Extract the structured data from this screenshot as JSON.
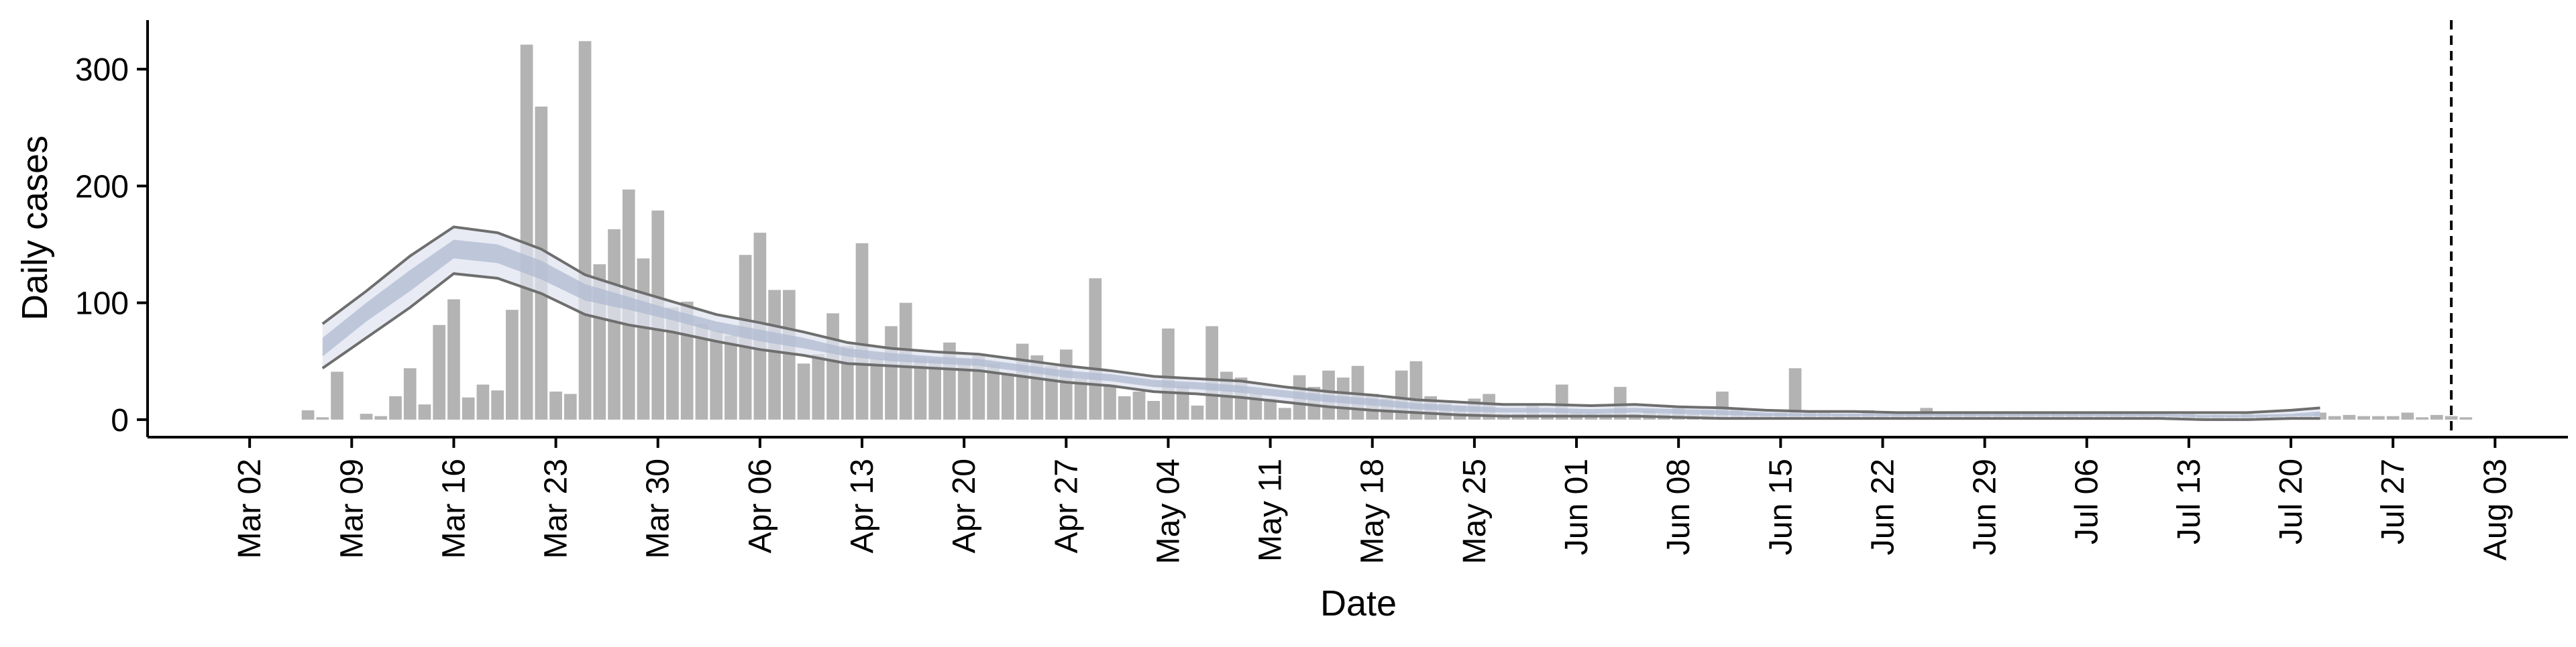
{
  "chart_data": {
    "type": "bar",
    "title": "",
    "xlabel": "Date",
    "ylabel": "Daily cases",
    "ylim": [
      -15,
      342
    ],
    "xlim": [
      "2020-02-24",
      "2020-08-08"
    ],
    "yticks": [
      0,
      100,
      200,
      300
    ],
    "ytick_labels": [
      "0",
      "100",
      "200",
      "300"
    ],
    "xticks": [
      "2020-03-02",
      "2020-03-09",
      "2020-03-16",
      "2020-03-23",
      "2020-03-30",
      "2020-04-06",
      "2020-04-13",
      "2020-04-20",
      "2020-04-27",
      "2020-05-04",
      "2020-05-11",
      "2020-05-18",
      "2020-05-25",
      "2020-06-01",
      "2020-06-08",
      "2020-06-15",
      "2020-06-22",
      "2020-06-29",
      "2020-07-06",
      "2020-07-13",
      "2020-07-20",
      "2020-07-27",
      "2020-08-03"
    ],
    "xtick_labels": [
      "Mar 02",
      "Mar 09",
      "Mar 16",
      "Mar 23",
      "Mar 30",
      "Apr 06",
      "Apr 13",
      "Apr 20",
      "Apr 27",
      "May 04",
      "May 11",
      "May 18",
      "May 25",
      "Jun 01",
      "Jun 08",
      "Jun 15",
      "Jun 22",
      "Jun 29",
      "Jul 06",
      "Jul 13",
      "Jul 20",
      "Jul 27",
      "Aug 03"
    ],
    "grid": false,
    "legend": "none",
    "colors": {
      "bars": "#b3b3b3",
      "band_outer": "#dfe3ee",
      "band_inner": "#b0bad2",
      "bound_lines": "#6e6e6e",
      "vline": "#000000",
      "axis": "#000000"
    },
    "daily_cases": {
      "start_date": "2020-03-06",
      "values": [
        8,
        2,
        41,
        0,
        5,
        3,
        20,
        44,
        13,
        81,
        103,
        19,
        30,
        25,
        94,
        321,
        268,
        24,
        22,
        324,
        133,
        163,
        197,
        138,
        179,
        96,
        101,
        82,
        76,
        72,
        141,
        160,
        111,
        111,
        48,
        56,
        91,
        63,
        151,
        52,
        80,
        100,
        53,
        52,
        66,
        52,
        56,
        48,
        40,
        65,
        55,
        46,
        60,
        35,
        121,
        30,
        20,
        24,
        16,
        78,
        29,
        12,
        80,
        41,
        36,
        22,
        18,
        10,
        38,
        28,
        42,
        36,
        46,
        22,
        18,
        42,
        50,
        20,
        14,
        12,
        18,
        22,
        5,
        5,
        14,
        5,
        30,
        6,
        5,
        5,
        28,
        5,
        8,
        5,
        10,
        5,
        8,
        24,
        10,
        5,
        5,
        6,
        44,
        6,
        6,
        5,
        5,
        8,
        5,
        5,
        5,
        10,
        5,
        5,
        5,
        5,
        5,
        5,
        5,
        5,
        5,
        5,
        5,
        4,
        5,
        4,
        5,
        4,
        3,
        5,
        3,
        4,
        3,
        5,
        4,
        3,
        3,
        3,
        6,
        3,
        4,
        3,
        3,
        3,
        6,
        2,
        4,
        3,
        2
      ]
    },
    "model_fit": {
      "description_dates": [
        "2020-03-07",
        "2020-03-10",
        "2020-03-13",
        "2020-03-16",
        "2020-03-19",
        "2020-03-22",
        "2020-03-25",
        "2020-03-28",
        "2020-03-31",
        "2020-04-03",
        "2020-04-06",
        "2020-04-09",
        "2020-04-12",
        "2020-04-15",
        "2020-04-18",
        "2020-04-21",
        "2020-04-24",
        "2020-04-27",
        "2020-04-30",
        "2020-05-03",
        "2020-05-06",
        "2020-05-09",
        "2020-05-12",
        "2020-05-15",
        "2020-05-18",
        "2020-05-21",
        "2020-05-24",
        "2020-05-27",
        "2020-05-30",
        "2020-06-02",
        "2020-06-05",
        "2020-06-08",
        "2020-06-11",
        "2020-06-14",
        "2020-06-17",
        "2020-06-20",
        "2020-06-23",
        "2020-06-26",
        "2020-06-29",
        "2020-07-02",
        "2020-07-05",
        "2020-07-08",
        "2020-07-11",
        "2020-07-14",
        "2020-07-17",
        "2020-07-20",
        "2020-07-22"
      ],
      "median": [
        62,
        92,
        118,
        146,
        142,
        128,
        110,
        100,
        90,
        80,
        72,
        66,
        58,
        54,
        51,
        49,
        44,
        39,
        36,
        31,
        29,
        26,
        22,
        18,
        15,
        12,
        10,
        8,
        8,
        7,
        8,
        7,
        6,
        5,
        4,
        4,
        4,
        4,
        4,
        4,
        4,
        4,
        4,
        3,
        3,
        4,
        5
      ],
      "upper_outer": [
        82,
        110,
        140,
        165,
        160,
        146,
        124,
        112,
        101,
        90,
        83,
        75,
        66,
        61,
        58,
        56,
        51,
        46,
        42,
        37,
        35,
        33,
        28,
        24,
        21,
        17,
        15,
        13,
        13,
        12,
        13,
        11,
        10,
        8,
        7,
        7,
        6,
        6,
        6,
        6,
        6,
        6,
        6,
        6,
        6,
        8,
        10
      ],
      "lower_outer": [
        44,
        70,
        96,
        125,
        121,
        108,
        90,
        81,
        75,
        67,
        60,
        55,
        48,
        46,
        44,
        42,
        37,
        32,
        29,
        24,
        22,
        19,
        15,
        11,
        8,
        6,
        4,
        3,
        3,
        3,
        3,
        2,
        1,
        1,
        1,
        1,
        1,
        1,
        1,
        1,
        1,
        1,
        1,
        0,
        0,
        1,
        1
      ],
      "upper_inner": [
        70,
        100,
        128,
        154,
        150,
        136,
        116,
        105,
        94,
        84,
        77,
        70,
        61,
        57,
        54,
        52,
        47,
        42,
        39,
        34,
        32,
        29,
        25,
        21,
        18,
        14,
        12,
        10,
        10,
        9,
        10,
        9,
        8,
        6,
        5,
        5,
        5,
        5,
        5,
        5,
        5,
        5,
        5,
        4,
        4,
        5,
        7
      ],
      "lower_inner": [
        54,
        84,
        110,
        138,
        134,
        120,
        102,
        94,
        85,
        75,
        67,
        61,
        54,
        50,
        48,
        46,
        41,
        36,
        33,
        28,
        26,
        23,
        19,
        15,
        12,
        9,
        7,
        6,
        6,
        5,
        6,
        5,
        4,
        3,
        3,
        3,
        3,
        3,
        3,
        3,
        3,
        3,
        3,
        2,
        2,
        3,
        3
      ]
    },
    "vline_date": "2020-07-31"
  }
}
